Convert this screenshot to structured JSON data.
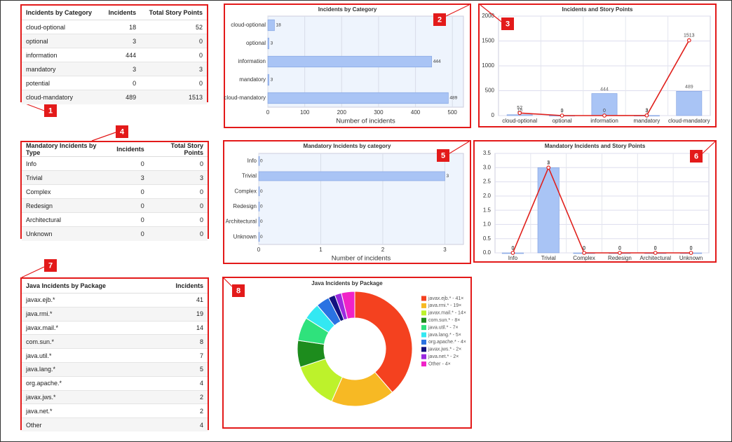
{
  "tables": [
    {
      "columns": [
        "Incidents by Category",
        "Incidents",
        "Total Story Points"
      ],
      "rows": [
        [
          "cloud-optional",
          18,
          52
        ],
        [
          "optional",
          3,
          0
        ],
        [
          "information",
          444,
          0
        ],
        [
          "mandatory",
          3,
          3
        ],
        [
          "potential",
          0,
          0
        ],
        [
          "cloud-mandatory",
          489,
          1513
        ]
      ]
    },
    {
      "columns": [
        "Mandatory Incidents by Type",
        "Incidents",
        "Total Story Points"
      ],
      "rows": [
        [
          "Info",
          0,
          0
        ],
        [
          "Trivial",
          3,
          3
        ],
        [
          "Complex",
          0,
          0
        ],
        [
          "Redesign",
          0,
          0
        ],
        [
          "Architectural",
          0,
          0
        ],
        [
          "Unknown",
          0,
          0
        ]
      ]
    },
    {
      "columns": [
        "Java Incidents by Package",
        "Incidents"
      ],
      "rows": [
        [
          "javax.ejb.*",
          41
        ],
        [
          "java.rmi.*",
          19
        ],
        [
          "javax.mail.*",
          14
        ],
        [
          "com.sun.*",
          8
        ],
        [
          "java.util.*",
          7
        ],
        [
          "java.lang.*",
          5
        ],
        [
          "org.apache.*",
          4
        ],
        [
          "javax.jws.*",
          2
        ],
        [
          "java.net.*",
          2
        ],
        [
          "Other",
          4
        ]
      ]
    }
  ],
  "chart_data": [
    {
      "type": "bar",
      "horizontal": true,
      "title": "Incidents by Category",
      "categories": [
        "cloud-optional",
        "optional",
        "information",
        "mandatory",
        "cloud-mandatory"
      ],
      "values": [
        18,
        3,
        444,
        3,
        489
      ],
      "color": "#a9c4f5",
      "xlim": [
        0,
        530
      ],
      "xticks": [
        0,
        100,
        200,
        300,
        400,
        500
      ],
      "xlabel": "Number of incidents",
      "grid": true
    },
    {
      "type": "combo",
      "title": "Incidents and Story Points",
      "categories": [
        "cloud-optional",
        "optional",
        "information",
        "mandatory",
        "cloud-mandatory"
      ],
      "series": [
        {
          "type": "bar",
          "color": "#a9c4f5",
          "values": [
            18,
            3,
            444,
            3,
            489
          ]
        },
        {
          "type": "line",
          "color": "#e0201c",
          "values": [
            52,
            0,
            0,
            3,
            1513
          ]
        }
      ],
      "ylim": [
        0,
        2000
      ],
      "yticks": [
        0,
        500,
        1000,
        1500,
        2000
      ],
      "grid": true
    },
    {
      "type": "bar",
      "horizontal": true,
      "title": "Mandatory Incidents by category",
      "categories": [
        "Info",
        "Trivial",
        "Complex",
        "Redesign",
        "Architectural",
        "Unknown"
      ],
      "values": [
        0,
        3,
        0,
        0,
        0,
        0
      ],
      "color": "#a9c4f5",
      "xlim": [
        0,
        3.3
      ],
      "xticks": [
        0,
        1,
        2,
        3
      ],
      "xlabel": "Number of incidents",
      "grid": true
    },
    {
      "type": "combo",
      "title": "Mandatory Incidents and Story Points",
      "categories": [
        "Info",
        "Trivial",
        "Complex",
        "Redesign",
        "Architectural",
        "Unknown"
      ],
      "series": [
        {
          "type": "bar",
          "color": "#a9c4f5",
          "values": [
            0,
            3,
            0,
            0,
            0,
            0
          ]
        },
        {
          "type": "line",
          "color": "#e0201c",
          "values": [
            0,
            3,
            0,
            0,
            0,
            0
          ]
        }
      ],
      "ylim": [
        0,
        3.5
      ],
      "yticks": [
        {
          "value": 0,
          "label": "0.0"
        },
        0.5,
        {
          "value": 1,
          "label": "1.0"
        },
        1.5,
        {
          "value": 2,
          "label": "2.0"
        },
        2.5,
        {
          "value": 3,
          "label": "3.0"
        },
        3.5
      ],
      "grid": true
    },
    {
      "type": "donut",
      "title": "Java Incidents by Package",
      "categories": [
        "javax.ejb.* - 41×",
        "java.rmi.* - 19×",
        "javax.mail.* - 14×",
        "com.sun.* - 8×",
        "java.util.* - 7×",
        "java.lang.* - 5×",
        "org.apache.* - 4×",
        "javax.jws.* - 2×",
        "java.net.* - 2×",
        "Other - 4×"
      ],
      "values": [
        41,
        19,
        14,
        8,
        7,
        5,
        4,
        2,
        2,
        4
      ],
      "colors": [
        "#f4411f",
        "#f7b924",
        "#bdf22b",
        "#1d8c1d",
        "#2fe27c",
        "#33e8f2",
        "#2a72e2",
        "#12127f",
        "#9b2ae0",
        "#f022c8"
      ]
    }
  ],
  "callouts": [
    "1",
    "2",
    "3",
    "4",
    "5",
    "6",
    "7",
    "8"
  ]
}
